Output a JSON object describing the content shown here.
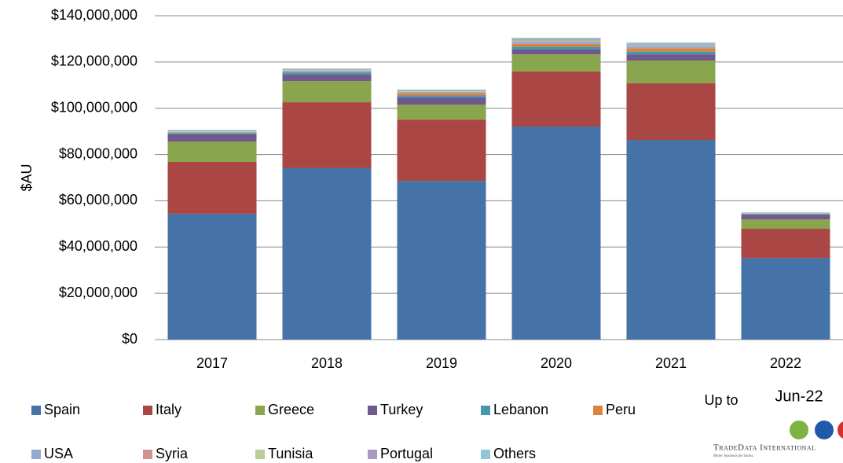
{
  "chart_data": {
    "type": "stacked_bar",
    "y_label": "$AU",
    "categories": [
      "2017",
      "2018",
      "2019",
      "2020",
      "2021",
      "2022"
    ],
    "note": [
      "Up to",
      "Jun-22"
    ],
    "logo": {
      "name": "TradeData International",
      "tagline": "Better business decisions."
    },
    "ylim": [
      0,
      140000000
    ],
    "yticks": [
      {
        "value": 0,
        "label": "$0"
      },
      {
        "value": 20000000,
        "label": "$20,000,000"
      },
      {
        "value": 40000000,
        "label": "$40,000,000"
      },
      {
        "value": 60000000,
        "label": "$60,000,000"
      },
      {
        "value": 80000000,
        "label": "$80,000,000"
      },
      {
        "value": 100000000,
        "label": "$100,000,000"
      },
      {
        "value": 120000000,
        "label": "$120,000,000"
      },
      {
        "value": 140000000,
        "label": "$140,000,000"
      }
    ],
    "grid": true,
    "legend": "bottom",
    "series": [
      {
        "name": "Spain",
        "color": "#4572a7",
        "values": [
          54400000,
          74100000,
          68600000,
          92100000,
          86300000,
          35300000
        ]
      },
      {
        "name": "Italy",
        "color": "#aa4643",
        "values": [
          22400000,
          28500000,
          26500000,
          23800000,
          24500000,
          12600000
        ]
      },
      {
        "name": "Greece",
        "color": "#89a54e",
        "values": [
          8800000,
          9200000,
          6500000,
          7400000,
          9800000,
          4100000
        ]
      },
      {
        "name": "Turkey",
        "color": "#71588f",
        "values": [
          3100000,
          2700000,
          3100000,
          2100000,
          2700000,
          2000000
        ]
      },
      {
        "name": "Lebanon",
        "color": "#4198af",
        "values": [
          600000,
          1000000,
          800000,
          1200000,
          1200000,
          300000
        ]
      },
      {
        "name": "Peru",
        "color": "#db843d",
        "values": [
          200000,
          300000,
          1000000,
          1200000,
          1500000,
          100000
        ]
      },
      {
        "name": "USA",
        "color": "#93a9cf",
        "values": [
          300000,
          400000,
          400000,
          800000,
          700000,
          200000
        ]
      },
      {
        "name": "Syria",
        "color": "#d19392",
        "values": [
          100000,
          100000,
          200000,
          300000,
          200000,
          50000
        ]
      },
      {
        "name": "Tunisia",
        "color": "#b9cd96",
        "values": [
          200000,
          200000,
          300000,
          400000,
          300000,
          100000
        ]
      },
      {
        "name": "Portugal",
        "color": "#a99bbd",
        "values": [
          200000,
          300000,
          300000,
          600000,
          400000,
          100000
        ]
      },
      {
        "name": "Others",
        "color": "#92c5d3",
        "values": [
          400000,
          400000,
          400000,
          600000,
          800000,
          150000
        ]
      }
    ]
  }
}
